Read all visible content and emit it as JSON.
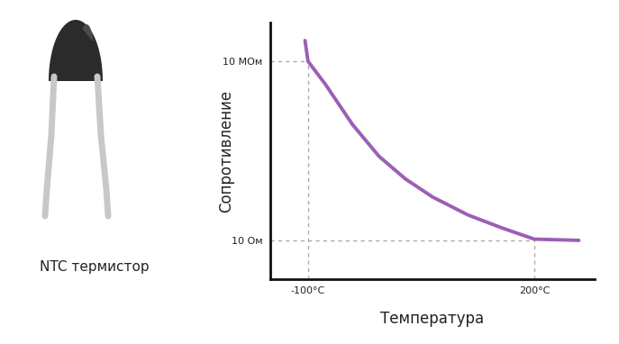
{
  "chart_data": {
    "type": "line",
    "x_label": "Температура",
    "y_label": "Сопротивление",
    "annotations": [
      "NTC термистор"
    ],
    "x": [
      -104,
      -100,
      -77,
      -41,
      -6,
      29,
      65,
      112,
      159,
      200,
      259
    ],
    "values": [
      50000000,
      10000000,
      1700000,
      76000,
      6600,
      1150,
      285,
      71,
      25,
      11,
      10
    ],
    "color": "#9b5fb5",
    "log": "y",
    "grid": false,
    "xlim": [
      -150,
      280
    ],
    "ylim": [
      0.5,
      200000000
    ],
    "xticks": [
      {
        "value": -100,
        "label": "-100°C"
      },
      {
        "value": 200,
        "label": "200°C"
      }
    ],
    "yticks": [
      {
        "value": 10,
        "label": "10 Ом"
      },
      {
        "value": 10000000,
        "label": "10 МОм"
      }
    ]
  }
}
